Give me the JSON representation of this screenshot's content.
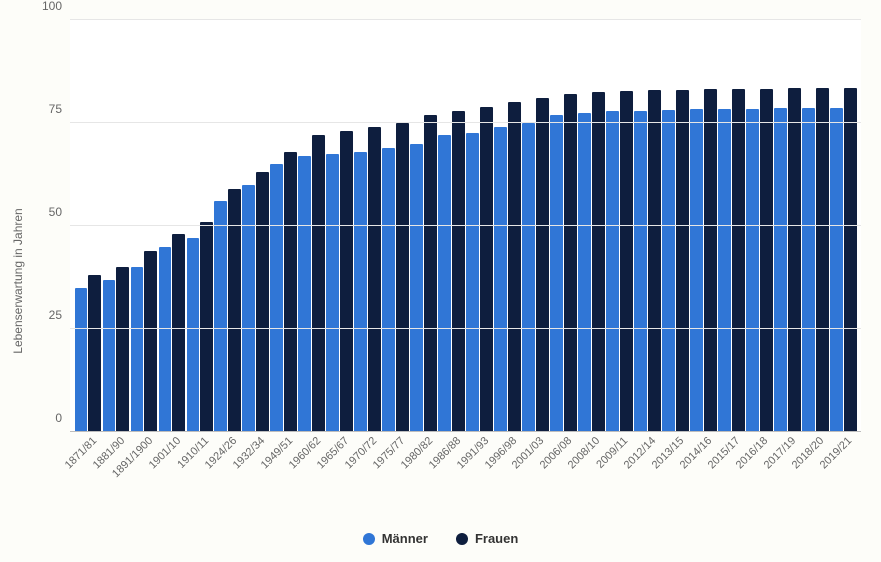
{
  "chart": {
    "type": "bar",
    "background_color": "#fdfdf9",
    "plot_background": "#ffffff",
    "grid_color": "#e6e6e6",
    "baseline_color": "#bdbdbd",
    "text_color": "#666666",
    "y_axis_label": "Lebenserwartung in Jahren",
    "y_axis_fontsize": 12,
    "tick_fontsize": 12,
    "x_label_fontsize": 11,
    "ylim": [
      0,
      100
    ],
    "yticks": [
      0,
      25,
      50,
      75,
      100
    ],
    "series": [
      {
        "key": "maenner",
        "label": "Männer",
        "color": "#3076d6"
      },
      {
        "key": "frauen",
        "label": "Frauen",
        "color": "#0e1e3e"
      }
    ],
    "legend_fontsize": 13,
    "legend_color": "#333333",
    "categories": [
      "1871/81",
      "1881/90",
      "1891/1900",
      "1901/10",
      "1910/11",
      "1924/26",
      "1932/34",
      "1949/51",
      "1960/62",
      "1965/67",
      "1970/72",
      "1975/77",
      "1980/82",
      "1986/88",
      "1991/93",
      "1996/98",
      "2001/03",
      "2006/08",
      "2008/10",
      "2009/11",
      "2012/14",
      "2013/15",
      "2014/16",
      "2015/17",
      "2016/18",
      "2017/19",
      "2018/20",
      "2019/21"
    ],
    "values": {
      "maenner": [
        35,
        37,
        40,
        45,
        47,
        56,
        60,
        65,
        67,
        67.5,
        68,
        69,
        70,
        72,
        72.5,
        74,
        75,
        77,
        77.5,
        77.8,
        78,
        78.2,
        78.3,
        78.4,
        78.5,
        78.6,
        78.6,
        78.7
      ],
      "frauen": [
        38,
        40,
        44,
        48,
        51,
        59,
        63,
        68,
        72,
        73,
        74,
        75,
        77,
        78,
        79,
        80,
        81,
        82,
        82.5,
        82.7,
        83,
        83.1,
        83.2,
        83.3,
        83.3,
        83.4,
        83.4,
        83.5
      ]
    }
  }
}
